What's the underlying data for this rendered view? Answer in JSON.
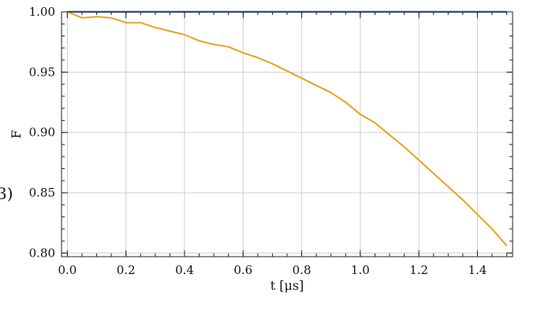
{
  "chart_data": {
    "type": "line",
    "xlabel": "t [μs]",
    "ylabel": "F",
    "side_label": "3)",
    "xlim": [
      -0.02,
      1.52
    ],
    "ylim": [
      0.797,
      1.0
    ],
    "grid": true,
    "xticks": [
      "0.0",
      "0.2",
      "0.4",
      "0.6",
      "0.8",
      "1.0",
      "1.2",
      "1.4"
    ],
    "yticks": [
      "0.80",
      "0.85",
      "0.90",
      "0.95",
      "1.00"
    ],
    "series": [
      {
        "color": "#4a78b8",
        "x": [
          0.0,
          0.1,
          0.2,
          0.3,
          0.4,
          0.5,
          0.6,
          0.7,
          0.8,
          0.9,
          1.0,
          1.1,
          1.2,
          1.3,
          1.4,
          1.5
        ],
        "y": [
          1.0,
          1.0,
          1.0,
          1.0,
          1.0,
          1.0,
          1.0,
          1.0,
          1.0,
          1.0,
          1.0,
          1.0,
          1.0,
          1.0,
          1.0,
          1.0
        ]
      },
      {
        "color": "#e3a51f",
        "x": [
          0.0,
          0.05,
          0.1,
          0.15,
          0.2,
          0.25,
          0.3,
          0.35,
          0.4,
          0.45,
          0.5,
          0.55,
          0.6,
          0.65,
          0.7,
          0.75,
          0.8,
          0.85,
          0.9,
          0.95,
          1.0,
          1.05,
          1.1,
          1.15,
          1.2,
          1.25,
          1.3,
          1.35,
          1.4,
          1.45,
          1.5
        ],
        "y": [
          1.0,
          0.995,
          0.996,
          0.995,
          0.991,
          0.991,
          0.987,
          0.984,
          0.981,
          0.976,
          0.973,
          0.971,
          0.966,
          0.962,
          0.957,
          0.951,
          0.945,
          0.939,
          0.933,
          0.925,
          0.915,
          0.908,
          0.898,
          0.888,
          0.877,
          0.866,
          0.855,
          0.844,
          0.832,
          0.82,
          0.806
        ]
      }
    ]
  }
}
